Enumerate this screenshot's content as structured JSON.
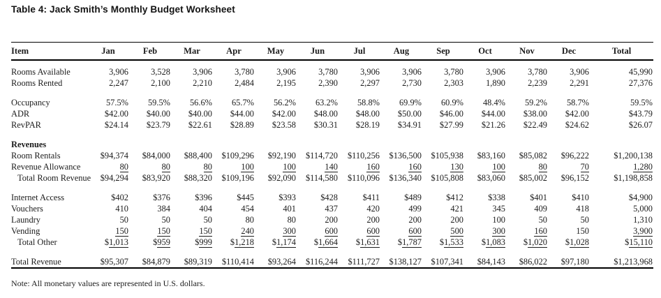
{
  "title": "Table 4: Jack Smith’s Monthly Budget Worksheet",
  "note": "Note: All monetary values are represented in U.S. dollars.",
  "colors": {
    "text": "#1c1c1c",
    "rule": "#000000",
    "background": "#ffffff"
  },
  "table": {
    "columns": [
      "Item",
      "Jan",
      "Feb",
      "Mar",
      "Apr",
      "May",
      "Jun",
      "Jul",
      "Aug",
      "Sep",
      "Oct",
      "Nov",
      "Dec",
      "Total"
    ],
    "sections": [
      {
        "name": "rooms",
        "rows": [
          {
            "label": "Rooms Available",
            "values": [
              "3,906",
              "3,528",
              "3,906",
              "3,780",
              "3,906",
              "3,780",
              "3,906",
              "3,906",
              "3,780",
              "3,906",
              "3,780",
              "3,906",
              "45,990"
            ]
          },
          {
            "label": "Rooms Rented",
            "values": [
              "2,247",
              "2,100",
              "2,210",
              "2,484",
              "2,195",
              "2,390",
              "2,297",
              "2,730",
              "2,303",
              "1,890",
              "2,239",
              "2,291",
              "27,376"
            ]
          }
        ]
      },
      {
        "name": "rates",
        "rows": [
          {
            "label": "Occupancy",
            "values": [
              "57.5%",
              "59.5%",
              "56.6%",
              "65.7%",
              "56.2%",
              "63.2%",
              "58.8%",
              "69.9%",
              "60.9%",
              "48.4%",
              "59.2%",
              "58.7%",
              "59.5%"
            ]
          },
          {
            "label": "ADR",
            "values": [
              "$42.00",
              "$40.00",
              "$40.00",
              "$44.00",
              "$42.00",
              "$48.00",
              "$48.00",
              "$50.00",
              "$46.00",
              "$44.00",
              "$38.00",
              "$42.00",
              "$43.79"
            ]
          },
          {
            "label": "RevPAR",
            "values": [
              "$24.14",
              "$23.79",
              "$22.61",
              "$28.89",
              "$23.58",
              "$30.31",
              "$28.19",
              "$34.91",
              "$27.99",
              "$21.26",
              "$22.49",
              "$24.62",
              "$26.07"
            ]
          }
        ]
      },
      {
        "name": "revenues",
        "heading": "Revenues",
        "rows": [
          {
            "label": "Room Rentals",
            "values": [
              "$94,374",
              "$84,000",
              "$88,400",
              "$109,296",
              "$92,190",
              "$114,720",
              "$110,256",
              "$136,500",
              "$105,938",
              "$83,160",
              "$85,082",
              "$96,222",
              "$1,200,138"
            ]
          },
          {
            "label": "Revenue Allowance",
            "values": [
              "80",
              "80",
              "80",
              "100",
              "100",
              "140",
              "160",
              "160",
              "130",
              "100",
              "80",
              "70",
              "1,280"
            ],
            "underline": [
              0,
              1,
              2,
              3,
              4,
              5,
              6,
              7,
              8,
              9,
              10,
              11,
              12
            ]
          },
          {
            "label": "Total Room Revenue",
            "indent": true,
            "values": [
              "$94,294",
              "$83,920",
              "$88,320",
              "$109,196",
              "$92,090",
              "$114,580",
              "$110,096",
              "$136,340",
              "$105,808",
              "$83,060",
              "$85,002",
              "$96,152",
              "$1,198,858"
            ]
          }
        ]
      },
      {
        "name": "other",
        "rows": [
          {
            "label": "Internet Access",
            "values": [
              "$402",
              "$376",
              "$396",
              "$445",
              "$393",
              "$428",
              "$411",
              "$489",
              "$412",
              "$338",
              "$401",
              "$410",
              "$4,900"
            ]
          },
          {
            "label": "Vouchers",
            "values": [
              "410",
              "384",
              "404",
              "454",
              "401",
              "437",
              "420",
              "499",
              "421",
              "345",
              "409",
              "418",
              "5,000"
            ]
          },
          {
            "label": "Laundry",
            "values": [
              "50",
              "50",
              "50",
              "80",
              "80",
              "200",
              "200",
              "200",
              "200",
              "100",
              "50",
              "50",
              "1,310"
            ]
          },
          {
            "label": "Vending",
            "values": [
              "150",
              "150",
              "150",
              "240",
              "300",
              "600",
              "600",
              "600",
              "500",
              "300",
              "160",
              "150",
              "3,900"
            ],
            "underline": [
              0,
              1,
              2,
              3,
              4,
              5,
              6,
              7,
              8,
              9,
              10,
              12
            ]
          },
          {
            "label": "Total Other",
            "indent": true,
            "values": [
              "$1,013",
              "$959",
              "$999",
              "$1,218",
              "$1,174",
              "$1,664",
              "$1,631",
              "$1,787",
              "$1,533",
              "$1,083",
              "$1,020",
              "$1,028",
              "$15,110"
            ],
            "underline": [
              0,
              1,
              2,
              3,
              4,
              5,
              6,
              7,
              8,
              9,
              10,
              11,
              12
            ]
          }
        ]
      },
      {
        "name": "total",
        "grand_total": true,
        "rows": [
          {
            "label": "Total Revenue",
            "values": [
              "$95,307",
              "$84,879",
              "$89,319",
              "$110,414",
              "$93,264",
              "$116,244",
              "$111,727",
              "$138,127",
              "$107,341",
              "$84,143",
              "$86,022",
              "$97,180",
              "$1,213,968"
            ]
          }
        ]
      }
    ]
  }
}
